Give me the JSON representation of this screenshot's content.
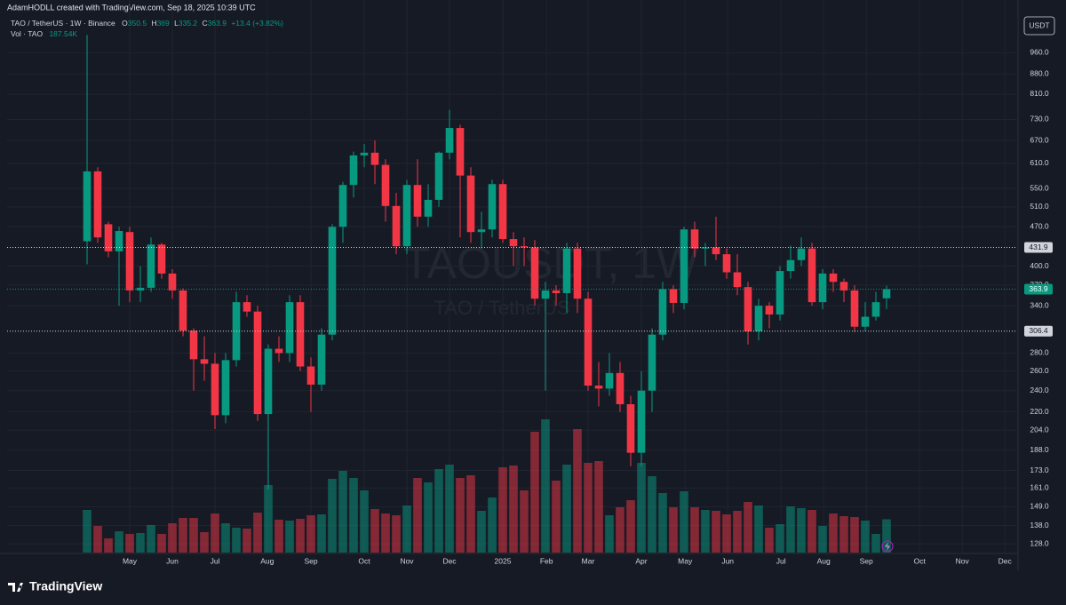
{
  "header": {
    "credit": "AdamHODLL created with TradingView.com, Sep 18, 2025 10:39 UTC",
    "change": "+13.4 (+3.82%)",
    "o": "O",
    "h": "H",
    "l": "L",
    "c": "C"
  },
  "watermark": {
    "symbol": "TAOUSDT, 1W",
    "description": "TAO / TetherUS"
  },
  "footer": {
    "brand": "TradingView"
  },
  "chart_data": {
    "type": "candlestick",
    "title": "TAO / TetherUS · 1W · Binance",
    "currency": "USDT",
    "up_color": "#089981",
    "down_color": "#f23645",
    "log_scale": true,
    "grid": true,
    "open": [
      443,
      590,
      475,
      425,
      460,
      362,
      366,
      437,
      388,
      362,
      307,
      273,
      268,
      217,
      272,
      345,
      332,
      218,
      285,
      280,
      345,
      265,
      246,
      302,
      470,
      558,
      630,
      637,
      606,
      512,
      434,
      558,
      490,
      525,
      637,
      705,
      580,
      460,
      465,
      560,
      447,
      434,
      432,
      350,
      362,
      358,
      430,
      350,
      245,
      242,
      258,
      227,
      186,
      240,
      302,
      364,
      344,
      465,
      430,
      432,
      420,
      390,
      367,
      306,
      340,
      328,
      392,
      410,
      430,
      345,
      388,
      375,
      362,
      312,
      325,
      350.5
    ],
    "high": [
      1033,
      600,
      480,
      470,
      470,
      400,
      450,
      440,
      395,
      365,
      310,
      300,
      280,
      280,
      360,
      355,
      340,
      290,
      300,
      355,
      355,
      275,
      310,
      475,
      565,
      640,
      660,
      670,
      620,
      540,
      570,
      620,
      560,
      640,
      760,
      715,
      600,
      500,
      570,
      570,
      460,
      450,
      445,
      375,
      370,
      440,
      440,
      360,
      270,
      280,
      270,
      235,
      260,
      310,
      375,
      370,
      470,
      480,
      440,
      490,
      430,
      420,
      375,
      350,
      345,
      400,
      435,
      450,
      440,
      395,
      395,
      380,
      370,
      345,
      360,
      369.0
    ],
    "low": [
      403,
      440,
      415,
      340,
      345,
      345,
      360,
      380,
      350,
      300,
      240,
      250,
      205,
      210,
      265,
      325,
      212,
      160,
      270,
      270,
      260,
      220,
      240,
      295,
      440,
      530,
      600,
      560,
      480,
      420,
      420,
      470,
      470,
      510,
      620,
      450,
      440,
      430,
      450,
      440,
      400,
      400,
      340,
      240,
      340,
      330,
      330,
      240,
      225,
      235,
      220,
      176,
      176,
      220,
      295,
      330,
      335,
      415,
      400,
      410,
      380,
      355,
      290,
      295,
      310,
      320,
      380,
      400,
      340,
      335,
      360,
      345,
      305,
      306,
      320,
      335.2
    ],
    "close": [
      590,
      450,
      425,
      462,
      362,
      366,
      437,
      388,
      362,
      307,
      273,
      268,
      217,
      272,
      345,
      332,
      218,
      285,
      280,
      345,
      265,
      246,
      302,
      470,
      558,
      630,
      637,
      606,
      512,
      434,
      558,
      490,
      525,
      637,
      705,
      580,
      460,
      465,
      560,
      447,
      434,
      432,
      350,
      362,
      358,
      430,
      350,
      245,
      242,
      258,
      227,
      186,
      240,
      302,
      364,
      344,
      465,
      430,
      432,
      420,
      390,
      367,
      306,
      340,
      328,
      392,
      410,
      430,
      345,
      388,
      375,
      362,
      312,
      325,
      345,
      363.9
    ],
    "volume": {
      "name": "Vol · TAO",
      "last_label": "187.54K",
      "values": [
        240,
        150,
        80,
        120,
        105,
        110,
        155,
        105,
        165,
        195,
        195,
        115,
        220,
        165,
        140,
        135,
        225,
        380,
        185,
        180,
        190,
        210,
        215,
        415,
        460,
        420,
        350,
        245,
        220,
        210,
        265,
        420,
        395,
        470,
        495,
        420,
        435,
        235,
        310,
        480,
        490,
        350,
        680,
        750,
        405,
        495,
        695,
        505,
        515,
        210,
        255,
        295,
        505,
        430,
        335,
        255,
        345,
        255,
        240,
        235,
        215,
        235,
        285,
        265,
        140,
        160,
        260,
        250,
        240,
        150,
        220,
        205,
        200,
        180,
        105,
        187.54
      ]
    },
    "ylim": [
      123.5,
      1100
    ],
    "y2lim": [
      0,
      3000
    ],
    "xlim": [
      -7.5,
      87.25
    ],
    "yticks": [
      {
        "value": 960,
        "label": "960.0"
      },
      {
        "value": 880,
        "label": "880.0"
      },
      {
        "value": 810,
        "label": "810.0"
      },
      {
        "value": 730,
        "label": "730.0"
      },
      {
        "value": 670,
        "label": "670.0"
      },
      {
        "value": 610,
        "label": "610.0"
      },
      {
        "value": 550,
        "label": "550.0"
      },
      {
        "value": 510,
        "label": "510.0"
      },
      {
        "value": 470,
        "label": "470.0"
      },
      {
        "value": 400,
        "label": "400.0"
      },
      {
        "value": 370,
        "label": "370.0"
      },
      {
        "value": 340,
        "label": "340.0"
      },
      {
        "value": 280,
        "label": "280.0"
      },
      {
        "value": 260,
        "label": "260.0"
      },
      {
        "value": 240,
        "label": "240.0"
      },
      {
        "value": 220,
        "label": "220.0"
      },
      {
        "value": 204,
        "label": "204.0"
      },
      {
        "value": 188,
        "label": "188.0"
      },
      {
        "value": 173,
        "label": "173.0"
      },
      {
        "value": 161,
        "label": "161.0"
      },
      {
        "value": 149,
        "label": "149.0"
      },
      {
        "value": 138,
        "label": "138.0"
      },
      {
        "value": 128,
        "label": "128.0"
      }
    ],
    "xticks": [
      {
        "value": 4,
        "label": "May"
      },
      {
        "value": 8,
        "label": "Jun"
      },
      {
        "value": 12,
        "label": "Jul"
      },
      {
        "value": 16.9,
        "label": "Aug"
      },
      {
        "value": 21,
        "label": "Sep"
      },
      {
        "value": 26,
        "label": "Oct"
      },
      {
        "value": 30,
        "label": "Nov"
      },
      {
        "value": 34,
        "label": "Dec"
      },
      {
        "value": 39,
        "label": "2025"
      },
      {
        "value": 43.1,
        "label": "Feb"
      },
      {
        "value": 47,
        "label": "Mar"
      },
      {
        "value": 52,
        "label": "Apr"
      },
      {
        "value": 56.1,
        "label": "May"
      },
      {
        "value": 60.1,
        "label": "Jun"
      },
      {
        "value": 65.1,
        "label": "Jul"
      },
      {
        "value": 69.1,
        "label": "Aug"
      },
      {
        "value": 73.1,
        "label": "Sep"
      },
      {
        "value": 78.1,
        "label": "Oct"
      },
      {
        "value": 82.1,
        "label": "Nov"
      },
      {
        "value": 86.1,
        "label": "Dec"
      }
    ],
    "price_lines": [
      431.9,
      306.4
    ]
  }
}
